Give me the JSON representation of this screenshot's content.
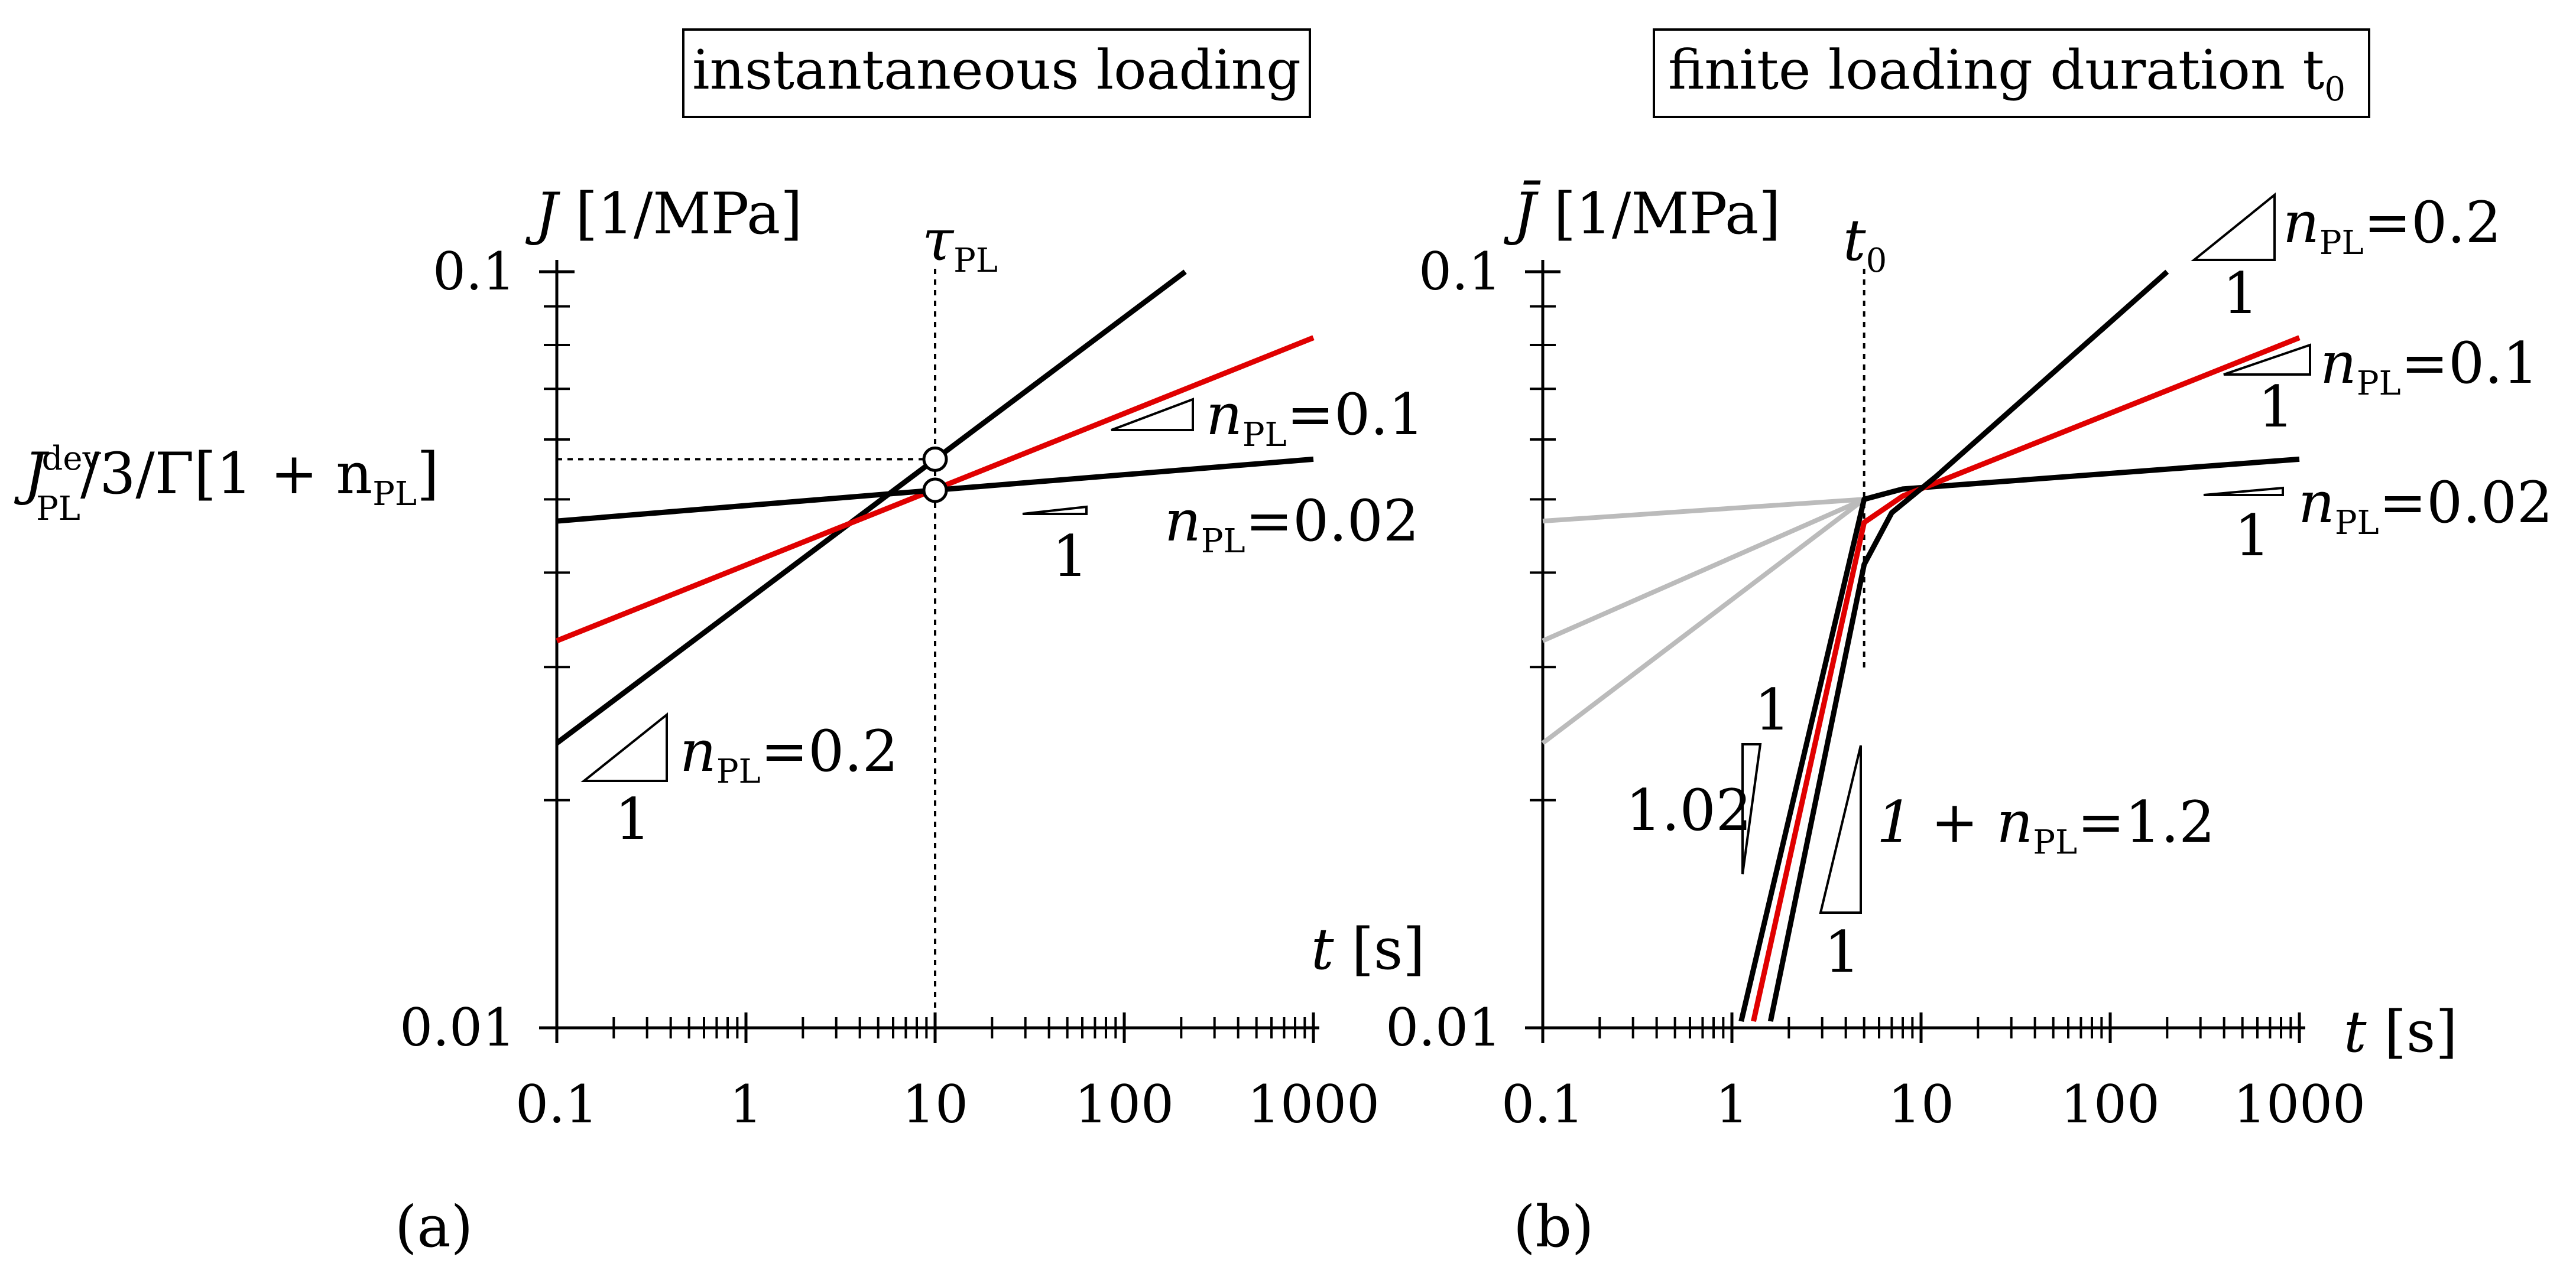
{
  "colors": {
    "black": "#000000",
    "red": "#e00000",
    "gray": "#bbbbbb"
  },
  "chart_data": [
    {
      "panel_label": "(a)",
      "title": "instantaneous loading",
      "type": "line",
      "scale": "log-log",
      "xlabel": "t",
      "xunit": "[s]",
      "ylabel": "J",
      "yunit": "[1/MPa]",
      "xlim": [
        0.1,
        1000
      ],
      "ylim": [
        0.01,
        0.1
      ],
      "xtick_labels": [
        "0.1",
        "1",
        "10",
        "100",
        "1000"
      ],
      "ytick_labels": [
        "0.01",
        "0.1"
      ],
      "vline": {
        "x": 10,
        "label": "τ",
        "label_sub": "PL"
      },
      "hline": {
        "y": 0.0565,
        "label": "J",
        "label_sup": "dev",
        "label_sub": "PL",
        "label_rest": "/3/Γ[1 + n",
        "label_sub2": "PL",
        "label_end": "]"
      },
      "series": [
        {
          "name": "n_PL=0.2",
          "color": "black",
          "points": [
            [
              0.1,
              0.0238
            ],
            [
              210,
              0.1
            ]
          ]
        },
        {
          "name": "n_PL=0.1",
          "color": "red",
          "points": [
            [
              0.1,
              0.0325
            ],
            [
              1000,
              0.0818
            ]
          ]
        },
        {
          "name": "n_PL=0.02",
          "color": "black",
          "points": [
            [
              0.1,
              0.0468
            ],
            [
              1000,
              0.0565
            ]
          ]
        }
      ],
      "markers": [
        [
          10,
          0.0565
        ],
        [
          10,
          0.0514
        ]
      ],
      "slope_labels": [
        {
          "n": "n",
          "sub": "PL",
          "value": "=0.1",
          "run": ""
        },
        {
          "n": "n",
          "sub": "PL",
          "value": "=0.02",
          "run": "1"
        },
        {
          "n": "n",
          "sub": "PL",
          "value": "=0.2",
          "run": "1"
        }
      ]
    },
    {
      "panel_label": "(b)",
      "title": "finite loading duration t",
      "title_sub": "0",
      "type": "line",
      "scale": "log-log",
      "xlabel": "t",
      "xunit": "[s]",
      "ylabel": "J̄",
      "yunit": "[1/MPa]",
      "xlim": [
        0.1,
        1000
      ],
      "ylim": [
        0.01,
        0.1
      ],
      "xtick_labels": [
        "0.1",
        "1",
        "10",
        "100",
        "1000"
      ],
      "ytick_labels": [
        "0.01",
        "0.1"
      ],
      "vline": {
        "x": 5,
        "label": "t",
        "label_sub": "0"
      },
      "gray_series": [
        {
          "name": "inst n=0.2",
          "points": [
            [
              0.1,
              0.0238
            ],
            [
              5,
              0.05
            ]
          ]
        },
        {
          "name": "inst n=0.1",
          "points": [
            [
              0.1,
              0.0325
            ],
            [
              5,
              0.05
            ]
          ]
        },
        {
          "name": "inst n=0.02",
          "points": [
            [
              0.1,
              0.0468
            ],
            [
              5,
              0.05
            ]
          ]
        }
      ],
      "series": [
        {
          "name": "n_PL=0.02",
          "color": "black",
          "points": [
            [
              1.12,
              0.0102
            ],
            [
              5,
              0.05
            ],
            [
              8,
              0.0516
            ],
            [
              1000,
              0.0565
            ]
          ]
        },
        {
          "name": "n_PL=0.1",
          "color": "red",
          "points": [
            [
              1.3,
              0.0102
            ],
            [
              5,
              0.0466
            ],
            [
              8,
              0.0505
            ],
            [
              1000,
              0.0818
            ]
          ]
        },
        {
          "name": "n_PL=0.2",
          "color": "black",
          "points": [
            [
              1.6,
              0.0102
            ],
            [
              5,
              0.041
            ],
            [
              7,
              0.048
            ],
            [
              12,
              0.0536
            ],
            [
              200,
              0.1
            ]
          ]
        }
      ],
      "slope_labels": [
        {
          "n": "n",
          "sub": "PL",
          "value": "=0.2",
          "run": "1"
        },
        {
          "n": "n",
          "sub": "PL",
          "value": "=0.1",
          "run": "1"
        },
        {
          "n": "n",
          "sub": "PL",
          "value": "=0.02",
          "run": "1"
        },
        {
          "n": "",
          "sub": "",
          "value": "1.02",
          "run": "1"
        },
        {
          "n": "1 + n",
          "sub": "PL",
          "value": "=1.2",
          "run": "1"
        }
      ]
    }
  ]
}
